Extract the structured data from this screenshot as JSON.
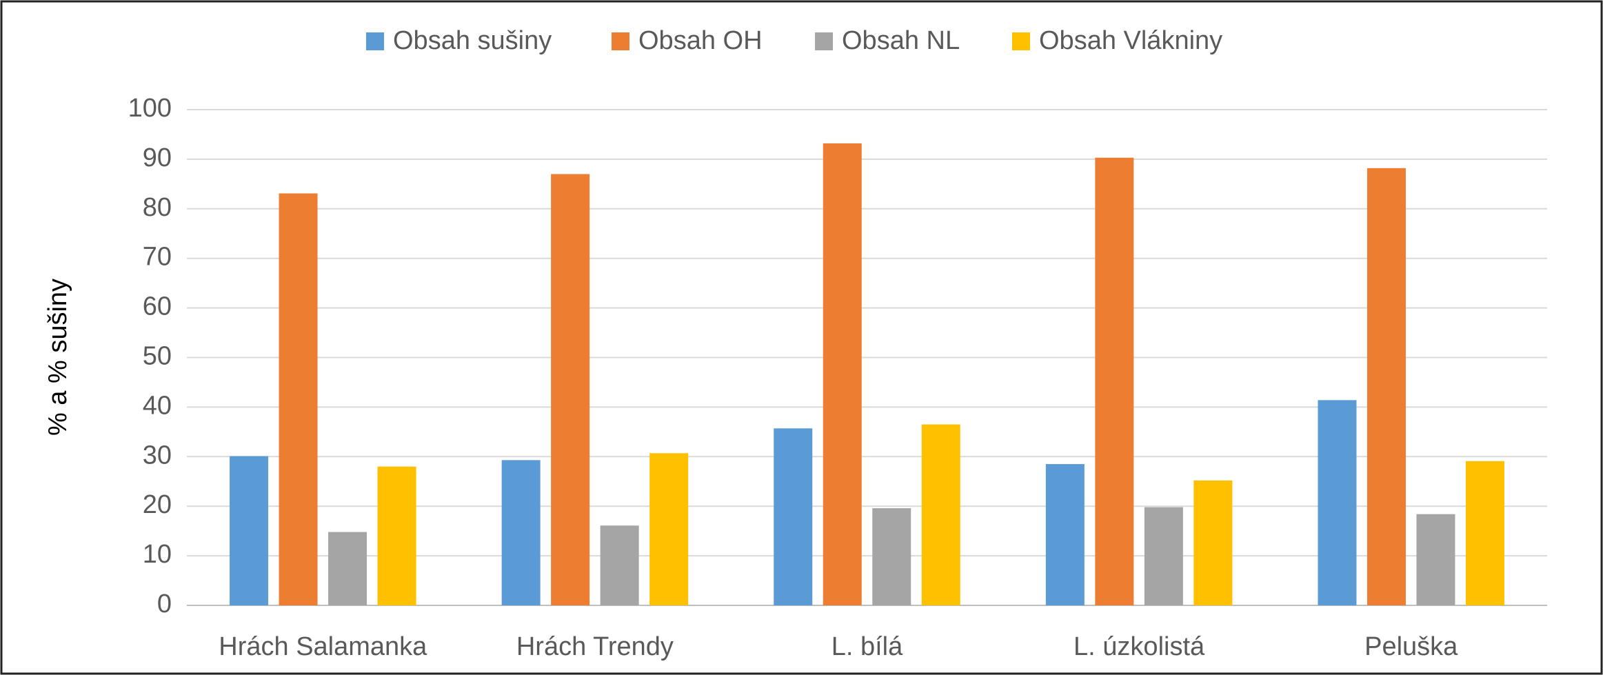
{
  "chart_data": {
    "type": "bar",
    "categories": [
      "Hrách Salamanka",
      "Hrách Trendy",
      "L. bílá",
      "L. úzkolistá",
      "Peluška"
    ],
    "series": [
      {
        "name": "Obsah sušiny",
        "color": "#5b9bd5",
        "values": [
          30.1,
          29.3,
          35.7,
          28.5,
          41.4
        ]
      },
      {
        "name": "Obsah OH",
        "color": "#ed7d31",
        "values": [
          83.1,
          87.0,
          93.2,
          90.3,
          88.2
        ]
      },
      {
        "name": "Obsah NL",
        "color": "#a5a5a5",
        "values": [
          14.8,
          16.1,
          19.6,
          19.8,
          18.4
        ]
      },
      {
        "name": "Obsah Vlákniny",
        "color": "#ffc000",
        "values": [
          28.0,
          30.7,
          36.5,
          25.2,
          29.1
        ]
      }
    ],
    "y_label": "% a % sušiny",
    "ylim": [
      0,
      100
    ],
    "yticks": [
      0,
      10,
      20,
      30,
      40,
      50,
      60,
      70,
      80,
      90,
      100
    ],
    "grid": true,
    "legend": "top"
  }
}
